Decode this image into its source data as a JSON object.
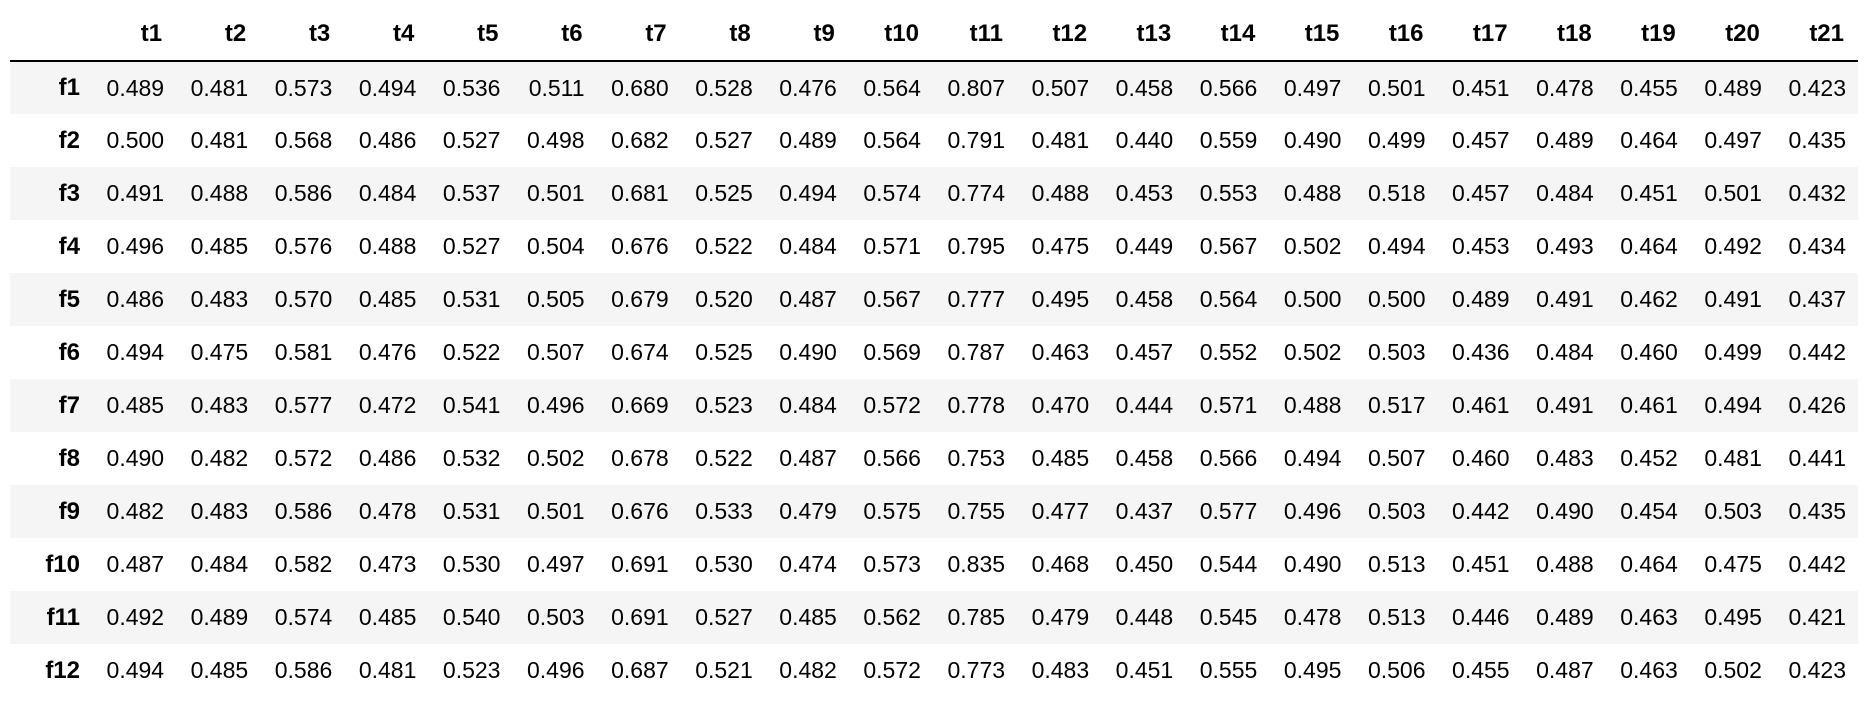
{
  "chart_data": {
    "type": "table",
    "columns": [
      "t1",
      "t2",
      "t3",
      "t4",
      "t5",
      "t6",
      "t7",
      "t8",
      "t9",
      "t10",
      "t11",
      "t12",
      "t13",
      "t14",
      "t15",
      "t16",
      "t17",
      "t18",
      "t19",
      "t20",
      "t21"
    ],
    "rows": [
      {
        "label": "f1",
        "values": [
          "0.489",
          "0.481",
          "0.573",
          "0.494",
          "0.536",
          "0.511",
          "0.680",
          "0.528",
          "0.476",
          "0.564",
          "0.807",
          "0.507",
          "0.458",
          "0.566",
          "0.497",
          "0.501",
          "0.451",
          "0.478",
          "0.455",
          "0.489",
          "0.423"
        ]
      },
      {
        "label": "f2",
        "values": [
          "0.500",
          "0.481",
          "0.568",
          "0.486",
          "0.527",
          "0.498",
          "0.682",
          "0.527",
          "0.489",
          "0.564",
          "0.791",
          "0.481",
          "0.440",
          "0.559",
          "0.490",
          "0.499",
          "0.457",
          "0.489",
          "0.464",
          "0.497",
          "0.435"
        ]
      },
      {
        "label": "f3",
        "values": [
          "0.491",
          "0.488",
          "0.586",
          "0.484",
          "0.537",
          "0.501",
          "0.681",
          "0.525",
          "0.494",
          "0.574",
          "0.774",
          "0.488",
          "0.453",
          "0.553",
          "0.488",
          "0.518",
          "0.457",
          "0.484",
          "0.451",
          "0.501",
          "0.432"
        ]
      },
      {
        "label": "f4",
        "values": [
          "0.496",
          "0.485",
          "0.576",
          "0.488",
          "0.527",
          "0.504",
          "0.676",
          "0.522",
          "0.484",
          "0.571",
          "0.795",
          "0.475",
          "0.449",
          "0.567",
          "0.502",
          "0.494",
          "0.453",
          "0.493",
          "0.464",
          "0.492",
          "0.434"
        ]
      },
      {
        "label": "f5",
        "values": [
          "0.486",
          "0.483",
          "0.570",
          "0.485",
          "0.531",
          "0.505",
          "0.679",
          "0.520",
          "0.487",
          "0.567",
          "0.777",
          "0.495",
          "0.458",
          "0.564",
          "0.500",
          "0.500",
          "0.489",
          "0.491",
          "0.462",
          "0.491",
          "0.437"
        ]
      },
      {
        "label": "f6",
        "values": [
          "0.494",
          "0.475",
          "0.581",
          "0.476",
          "0.522",
          "0.507",
          "0.674",
          "0.525",
          "0.490",
          "0.569",
          "0.787",
          "0.463",
          "0.457",
          "0.552",
          "0.502",
          "0.503",
          "0.436",
          "0.484",
          "0.460",
          "0.499",
          "0.442"
        ]
      },
      {
        "label": "f7",
        "values": [
          "0.485",
          "0.483",
          "0.577",
          "0.472",
          "0.541",
          "0.496",
          "0.669",
          "0.523",
          "0.484",
          "0.572",
          "0.778",
          "0.470",
          "0.444",
          "0.571",
          "0.488",
          "0.517",
          "0.461",
          "0.491",
          "0.461",
          "0.494",
          "0.426"
        ]
      },
      {
        "label": "f8",
        "values": [
          "0.490",
          "0.482",
          "0.572",
          "0.486",
          "0.532",
          "0.502",
          "0.678",
          "0.522",
          "0.487",
          "0.566",
          "0.753",
          "0.485",
          "0.458",
          "0.566",
          "0.494",
          "0.507",
          "0.460",
          "0.483",
          "0.452",
          "0.481",
          "0.441"
        ]
      },
      {
        "label": "f9",
        "values": [
          "0.482",
          "0.483",
          "0.586",
          "0.478",
          "0.531",
          "0.501",
          "0.676",
          "0.533",
          "0.479",
          "0.575",
          "0.755",
          "0.477",
          "0.437",
          "0.577",
          "0.496",
          "0.503",
          "0.442",
          "0.490",
          "0.454",
          "0.503",
          "0.435"
        ]
      },
      {
        "label": "f10",
        "values": [
          "0.487",
          "0.484",
          "0.582",
          "0.473",
          "0.530",
          "0.497",
          "0.691",
          "0.530",
          "0.474",
          "0.573",
          "0.835",
          "0.468",
          "0.450",
          "0.544",
          "0.490",
          "0.513",
          "0.451",
          "0.488",
          "0.464",
          "0.475",
          "0.442"
        ]
      },
      {
        "label": "f11",
        "values": [
          "0.492",
          "0.489",
          "0.574",
          "0.485",
          "0.540",
          "0.503",
          "0.691",
          "0.527",
          "0.485",
          "0.562",
          "0.785",
          "0.479",
          "0.448",
          "0.545",
          "0.478",
          "0.513",
          "0.446",
          "0.489",
          "0.463",
          "0.495",
          "0.421"
        ]
      },
      {
        "label": "f12",
        "values": [
          "0.494",
          "0.485",
          "0.586",
          "0.481",
          "0.523",
          "0.496",
          "0.687",
          "0.521",
          "0.482",
          "0.572",
          "0.773",
          "0.483",
          "0.451",
          "0.555",
          "0.495",
          "0.506",
          "0.455",
          "0.487",
          "0.463",
          "0.502",
          "0.423"
        ]
      }
    ],
    "stripe_color": "#f5f5f5",
    "header_rule_color": "#000000"
  }
}
